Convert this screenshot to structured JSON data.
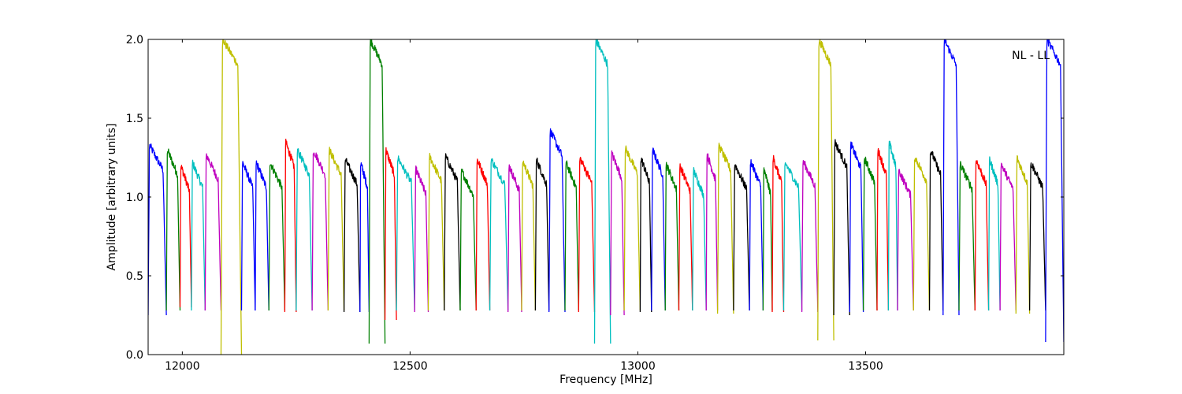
{
  "chart_data": {
    "type": "line",
    "title": "",
    "xlabel": "Frequency [MHz]",
    "ylabel": "Amplitude [arbitrary units]",
    "annotation": "NL - LL",
    "xlim": [
      11925,
      13935
    ],
    "ylim": [
      0.0,
      2.0
    ],
    "x_ticks": [
      12000,
      12500,
      13000,
      13500
    ],
    "x_tick_labels": [
      "12000",
      "12500",
      "13000",
      "13500"
    ],
    "y_ticks": [
      0.0,
      0.5,
      1.0,
      1.5,
      2.0
    ],
    "y_tick_labels": [
      "0.0",
      "0.5",
      "1.0",
      "1.5",
      "2.0"
    ],
    "grid": false,
    "legend": "none",
    "channel_cycle_colors": [
      "#0000ff",
      "#008000",
      "#ff0000",
      "#00bfbf",
      "#bf00bf",
      "#bfbf00",
      "#000000"
    ],
    "gray_color": "#c0c0c0",
    "series": [
      {
        "x_start": 11925,
        "x_end": 11965,
        "color": "#0000ff",
        "peak": 1.33,
        "dip_min": 0.25
      },
      {
        "x_start": 11965,
        "x_end": 11995,
        "color": "#008000",
        "peak": 1.3,
        "dip_min": 0.28
      },
      {
        "x_start": 11995,
        "x_end": 12020,
        "color": "#ff0000",
        "peak": 1.2,
        "dip_min": 0.3
      },
      {
        "x_start": 12020,
        "x_end": 12050,
        "color": "#00bfbf",
        "peak": 1.22,
        "dip_min": 0.28
      },
      {
        "x_start": 12050,
        "x_end": 12085,
        "color": "#bf00bf",
        "peak": 1.27,
        "dip_min": 0.28
      },
      {
        "x_start": 12085,
        "x_end": 12130,
        "color": "#bfbf00",
        "peak": 2.0,
        "dip_min": 0.0
      },
      {
        "x_start": 12130,
        "x_end": 12160,
        "color": "#0000ff",
        "peak": 1.22,
        "dip_min": 0.28
      },
      {
        "x_start": 12160,
        "x_end": 12190,
        "color": "#0000ff",
        "peak": 1.22,
        "dip_min": 0.28
      },
      {
        "x_start": 12190,
        "x_end": 12225,
        "color": "#008000",
        "peak": 1.22,
        "dip_min": 0.28
      },
      {
        "x_start": 12225,
        "x_end": 12250,
        "color": "#ff0000",
        "peak": 1.35,
        "dip_min": 0.27
      },
      {
        "x_start": 12250,
        "x_end": 12285,
        "color": "#00bfbf",
        "peak": 1.3,
        "dip_min": 0.28
      },
      {
        "x_start": 12285,
        "x_end": 12320,
        "color": "#bf00bf",
        "peak": 1.3,
        "dip_min": 0.28
      },
      {
        "x_start": 12320,
        "x_end": 12355,
        "color": "#bfbf00",
        "peak": 1.3,
        "dip_min": 0.28
      },
      {
        "x_start": 12355,
        "x_end": 12390,
        "color": "#000000",
        "peak": 1.24,
        "dip_min": 0.27
      },
      {
        "x_start": 12390,
        "x_end": 12410,
        "color": "#0000ff",
        "peak": 1.22,
        "dip_min": 0.27
      },
      {
        "x_start": 12410,
        "x_end": 12445,
        "color": "#008000",
        "peak": 2.0,
        "dip_min": 0.07
      },
      {
        "x_start": 12445,
        "x_end": 12470,
        "color": "#ff0000",
        "peak": 1.3,
        "dip_min": 0.22
      },
      {
        "x_start": 12470,
        "x_end": 12510,
        "color": "#00bfbf",
        "peak": 1.25,
        "dip_min": 0.28
      },
      {
        "x_start": 12510,
        "x_end": 12540,
        "color": "#bf00bf",
        "peak": 1.18,
        "dip_min": 0.27
      },
      {
        "x_start": 12540,
        "x_end": 12575,
        "color": "#bfbf00",
        "peak": 1.26,
        "dip_min": 0.28
      },
      {
        "x_start": 12575,
        "x_end": 12610,
        "color": "#000000",
        "peak": 1.26,
        "dip_min": 0.28
      },
      {
        "x_start": 12610,
        "x_end": 12645,
        "color": "#008000",
        "peak": 1.17,
        "dip_min": 0.28
      },
      {
        "x_start": 12645,
        "x_end": 12675,
        "color": "#ff0000",
        "peak": 1.24,
        "dip_min": 0.28
      },
      {
        "x_start": 12675,
        "x_end": 12715,
        "color": "#00bfbf",
        "peak": 1.24,
        "dip_min": 0.28
      },
      {
        "x_start": 12715,
        "x_end": 12745,
        "color": "#bf00bf",
        "peak": 1.2,
        "dip_min": 0.27
      },
      {
        "x_start": 12745,
        "x_end": 12775,
        "color": "#bfbf00",
        "peak": 1.23,
        "dip_min": 0.28
      },
      {
        "x_start": 12775,
        "x_end": 12805,
        "color": "#000000",
        "peak": 1.24,
        "dip_min": 0.28
      },
      {
        "x_start": 12805,
        "x_end": 12840,
        "color": "#0000ff",
        "peak": 1.42,
        "dip_min": 0.27
      },
      {
        "x_start": 12840,
        "x_end": 12870,
        "color": "#008000",
        "peak": 1.22,
        "dip_min": 0.28
      },
      {
        "x_start": 12870,
        "x_end": 12905,
        "color": "#ff0000",
        "peak": 1.25,
        "dip_min": 0.27
      },
      {
        "x_start": 12905,
        "x_end": 12940,
        "color": "#00bfbf",
        "peak": 2.0,
        "dip_min": 0.07
      },
      {
        "x_start": 12940,
        "x_end": 12970,
        "color": "#bf00bf",
        "peak": 1.28,
        "dip_min": 0.25
      },
      {
        "x_start": 12970,
        "x_end": 13005,
        "color": "#bfbf00",
        "peak": 1.31,
        "dip_min": 0.28
      },
      {
        "x_start": 13005,
        "x_end": 13030,
        "color": "#000000",
        "peak": 1.25,
        "dip_min": 0.27
      },
      {
        "x_start": 13030,
        "x_end": 13060,
        "color": "#0000ff",
        "peak": 1.3,
        "dip_min": 0.28
      },
      {
        "x_start": 13060,
        "x_end": 13090,
        "color": "#008000",
        "peak": 1.21,
        "dip_min": 0.28
      },
      {
        "x_start": 13090,
        "x_end": 13120,
        "color": "#ff0000",
        "peak": 1.2,
        "dip_min": 0.28
      },
      {
        "x_start": 13120,
        "x_end": 13150,
        "color": "#00bfbf",
        "peak": 1.17,
        "dip_min": 0.28
      },
      {
        "x_start": 13150,
        "x_end": 13175,
        "color": "#bf00bf",
        "peak": 1.27,
        "dip_min": 0.28
      },
      {
        "x_start": 13175,
        "x_end": 13210,
        "color": "#bfbf00",
        "peak": 1.33,
        "dip_min": 0.26
      },
      {
        "x_start": 13210,
        "x_end": 13245,
        "color": "#000000",
        "peak": 1.21,
        "dip_min": 0.28
      },
      {
        "x_start": 13245,
        "x_end": 13275,
        "color": "#0000ff",
        "peak": 1.23,
        "dip_min": 0.28
      },
      {
        "x_start": 13275,
        "x_end": 13295,
        "color": "#008000",
        "peak": 1.18,
        "dip_min": 0.28
      },
      {
        "x_start": 13295,
        "x_end": 13320,
        "color": "#ff0000",
        "peak": 1.25,
        "dip_min": 0.27
      },
      {
        "x_start": 13320,
        "x_end": 13360,
        "color": "#00bfbf",
        "peak": 1.22,
        "dip_min": 0.28
      },
      {
        "x_start": 13360,
        "x_end": 13395,
        "color": "#bf00bf",
        "peak": 1.23,
        "dip_min": 0.27
      },
      {
        "x_start": 13395,
        "x_end": 13430,
        "color": "#bfbf00",
        "peak": 2.0,
        "dip_min": 0.09
      },
      {
        "x_start": 13430,
        "x_end": 13465,
        "color": "#000000",
        "peak": 1.35,
        "dip_min": 0.25
      },
      {
        "x_start": 13465,
        "x_end": 13495,
        "color": "#0000ff",
        "peak": 1.34,
        "dip_min": 0.27
      },
      {
        "x_start": 13495,
        "x_end": 13525,
        "color": "#008000",
        "peak": 1.25,
        "dip_min": 0.28
      },
      {
        "x_start": 13525,
        "x_end": 13550,
        "color": "#ff0000",
        "peak": 1.3,
        "dip_min": 0.28
      },
      {
        "x_start": 13550,
        "x_end": 13570,
        "color": "#00bfbf",
        "peak": 1.35,
        "dip_min": 0.28
      },
      {
        "x_start": 13570,
        "x_end": 13605,
        "color": "#bf00bf",
        "peak": 1.17,
        "dip_min": 0.28
      },
      {
        "x_start": 13605,
        "x_end": 13640,
        "color": "#bfbf00",
        "peak": 1.26,
        "dip_min": 0.28
      },
      {
        "x_start": 13640,
        "x_end": 13670,
        "color": "#000000",
        "peak": 1.3,
        "dip_min": 0.28
      },
      {
        "x_start": 13670,
        "x_end": 13705,
        "color": "#0000ff",
        "peak": 2.0,
        "dip_min": 0.25
      },
      {
        "x_start": 13705,
        "x_end": 13740,
        "color": "#008000",
        "peak": 1.21,
        "dip_min": 0.28
      },
      {
        "x_start": 13740,
        "x_end": 13770,
        "color": "#ff0000",
        "peak": 1.24,
        "dip_min": 0.28
      },
      {
        "x_start": 13770,
        "x_end": 13795,
        "color": "#00bfbf",
        "peak": 1.24,
        "dip_min": 0.28
      },
      {
        "x_start": 13795,
        "x_end": 13830,
        "color": "#bf00bf",
        "peak": 1.21,
        "dip_min": 0.28
      },
      {
        "x_start": 13830,
        "x_end": 13860,
        "color": "#bfbf00",
        "peak": 1.25,
        "dip_min": 0.26
      },
      {
        "x_start": 13860,
        "x_end": 13895,
        "color": "#000000",
        "peak": 1.22,
        "dip_min": 0.28
      },
      {
        "x_start": 13895,
        "x_end": 13935,
        "color": "#0000ff",
        "peak": 2.0,
        "dip_min": 0.08
      }
    ]
  }
}
